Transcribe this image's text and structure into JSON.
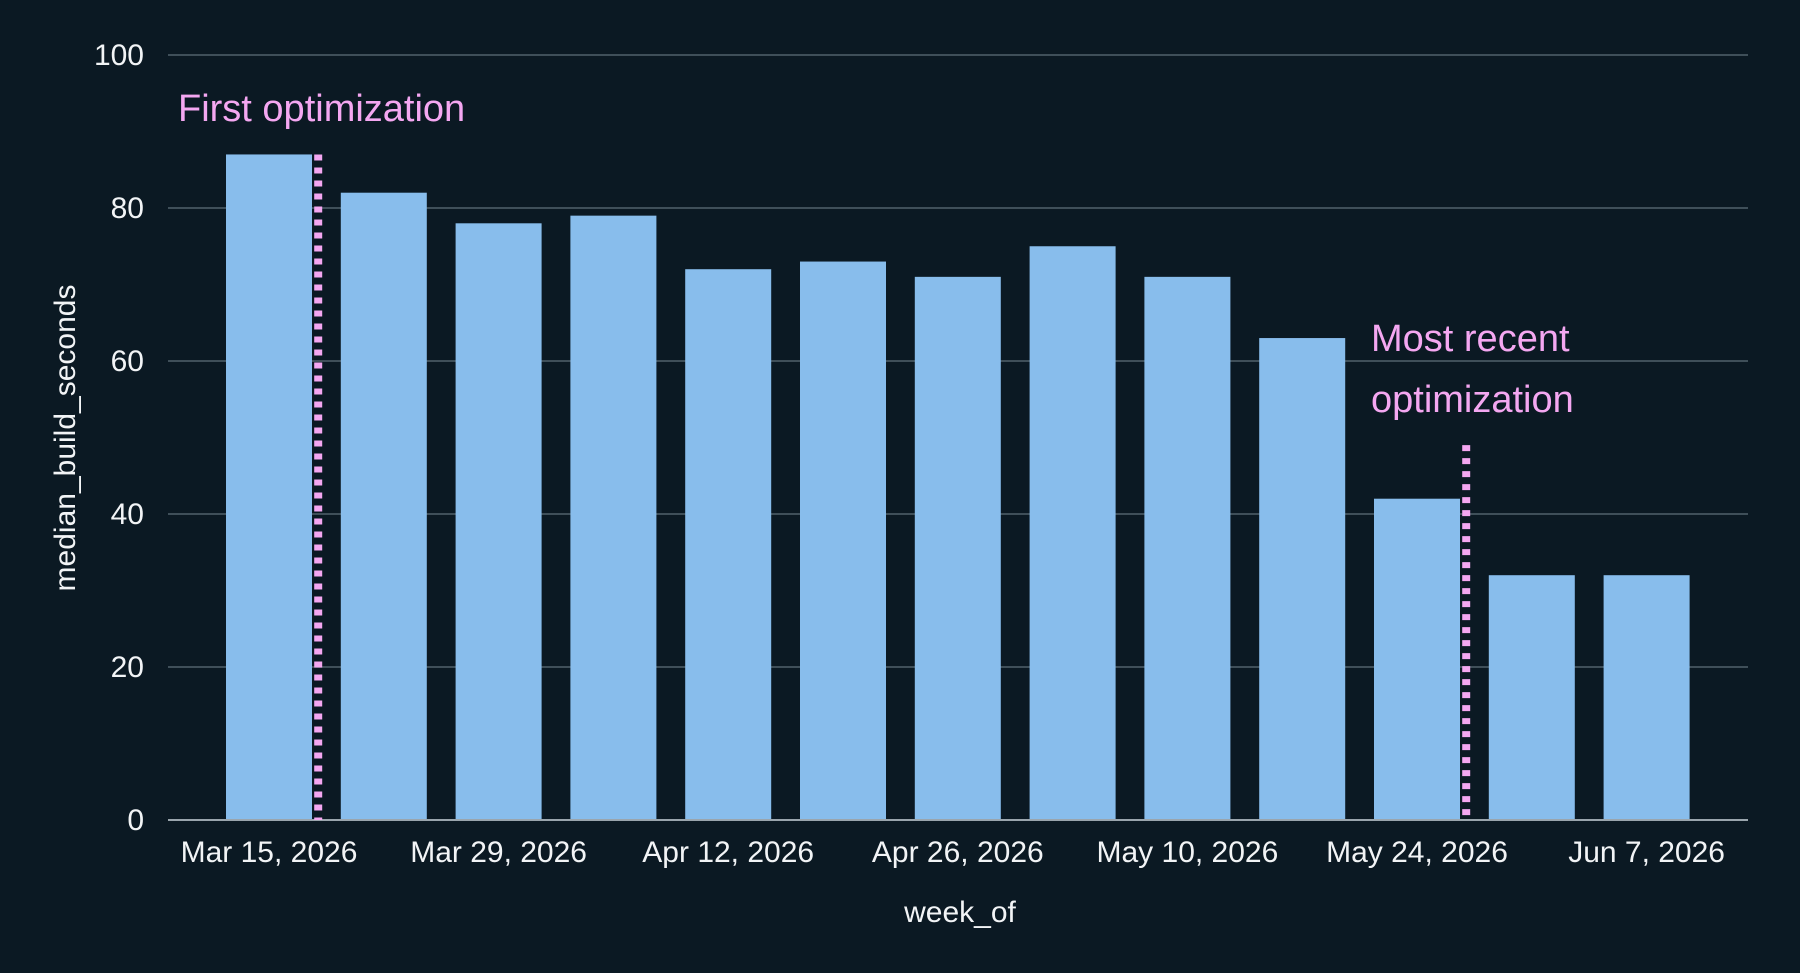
{
  "chart_data": {
    "type": "bar",
    "categories": [
      "Mar 15, 2026",
      "Mar 22, 2026",
      "Mar 29, 2026",
      "Apr 5, 2026",
      "Apr 12, 2026",
      "Apr 19, 2026",
      "Apr 26, 2026",
      "May 3, 2026",
      "May 10, 2026",
      "May 17, 2026",
      "May 24, 2026",
      "May 31, 2026",
      "Jun 7, 2026"
    ],
    "values": [
      87,
      82,
      78,
      79,
      72,
      73,
      71,
      75,
      71,
      63,
      42,
      32,
      32
    ],
    "x_tick_labels": [
      "Mar 15, 2026",
      "Mar 29, 2026",
      "Apr 12, 2026",
      "Apr 26, 2026",
      "May 10, 2026",
      "May 24, 2026",
      "Jun 7, 2026"
    ],
    "y_ticks": [
      0,
      20,
      40,
      60,
      80,
      100
    ],
    "xlabel": "week_of",
    "ylabel": "median_build_seconds",
    "ylim": [
      0,
      100
    ],
    "grid": "horizontal",
    "annotations": [
      {
        "text_lines": [
          "First optimization"
        ],
        "date": "Mar 18, 2026",
        "line_style": "dotted"
      },
      {
        "text_lines": [
          "Most recent",
          "optimization"
        ],
        "date": "May 27, 2026",
        "line_style": "dotted"
      }
    ],
    "colors": {
      "background": "#0b1923",
      "bar": "#88bdec",
      "grid": "#3f4f59",
      "axis": "#9aa5ad",
      "text": "#f2f4f6",
      "annotation": "#f4a7f1"
    }
  }
}
